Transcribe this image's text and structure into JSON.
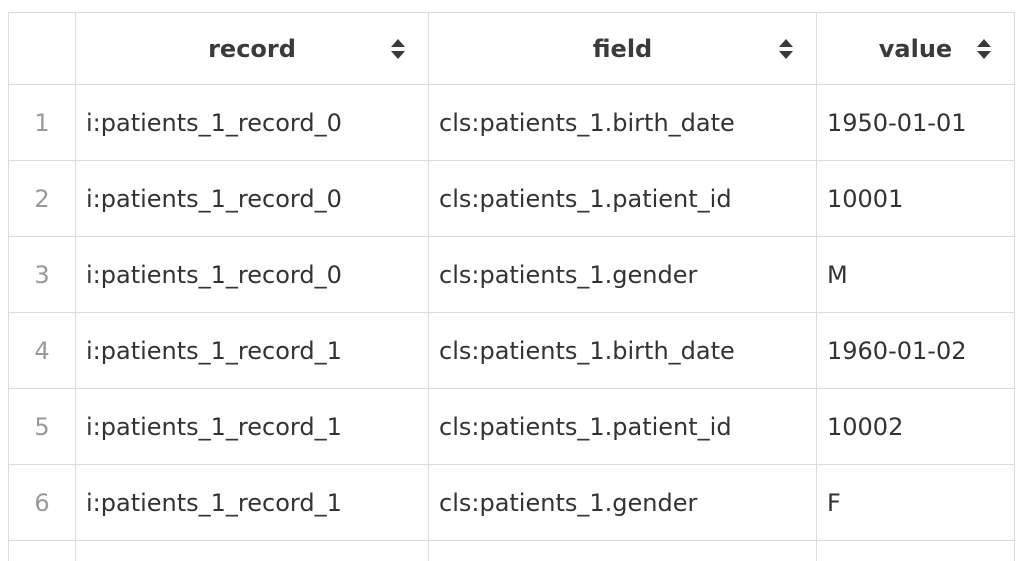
{
  "table": {
    "columns": [
      {
        "label": "record",
        "sort_icon": "sort-updown-icon"
      },
      {
        "label": "field",
        "sort_icon": "sort-updown-icon"
      },
      {
        "label": "value",
        "sort_icon": "sort-updown-icon"
      }
    ],
    "rows": [
      {
        "index": "1",
        "record": "i:patients_1_record_0",
        "field": "cls:patients_1.birth_date",
        "value": "1950-01-01"
      },
      {
        "index": "2",
        "record": "i:patients_1_record_0",
        "field": "cls:patients_1.patient_id",
        "value": "10001"
      },
      {
        "index": "3",
        "record": "i:patients_1_record_0",
        "field": "cls:patients_1.gender",
        "value": "M"
      },
      {
        "index": "4",
        "record": "i:patients_1_record_1",
        "field": "cls:patients_1.birth_date",
        "value": "1960-01-02"
      },
      {
        "index": "5",
        "record": "i:patients_1_record_1",
        "field": "cls:patients_1.patient_id",
        "value": "10002"
      },
      {
        "index": "6",
        "record": "i:patients_1_record_1",
        "field": "cls:patients_1.gender",
        "value": "F"
      }
    ]
  },
  "colors": {
    "border": "#dcdcdc",
    "text": "#333333",
    "index_text": "#999999",
    "sort_icon": "#3a3a3a"
  }
}
